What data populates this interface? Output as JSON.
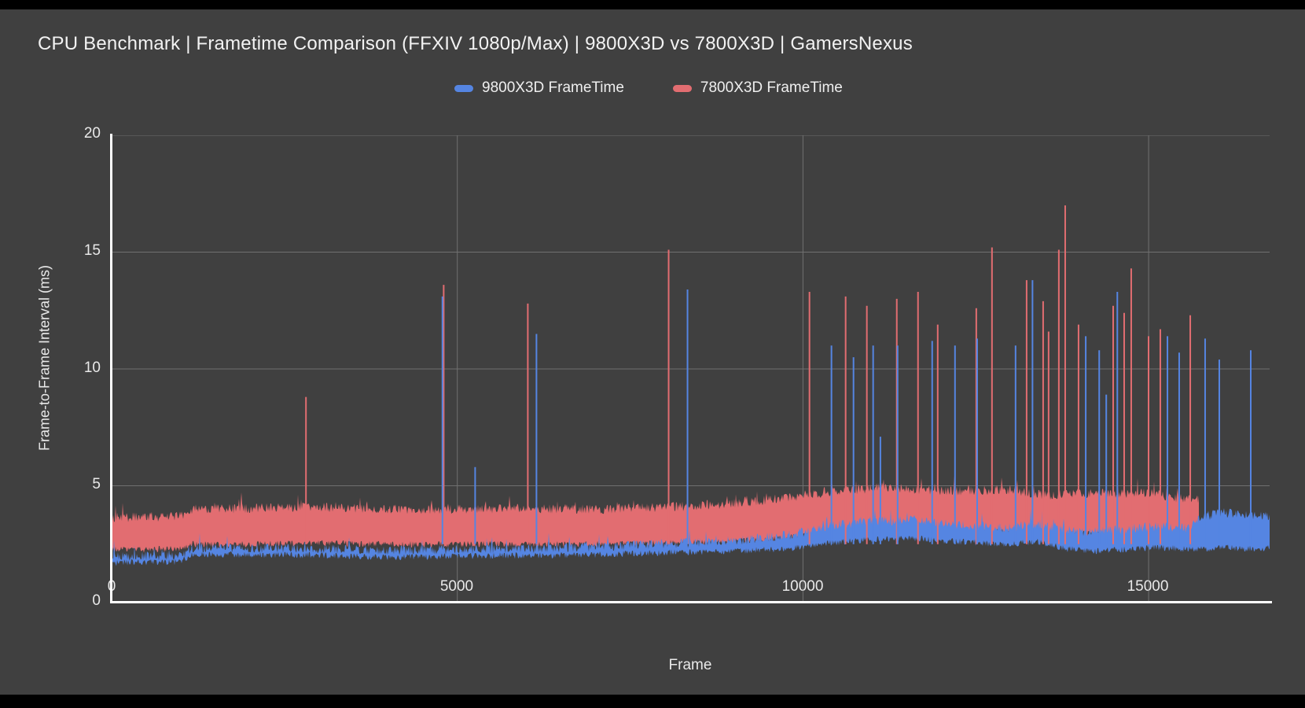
{
  "title": "CPU Benchmark | Frametime Comparison (FFXIV 1080p/Max) | 9800X3D vs 7800X3D | GamersNexus",
  "legend": {
    "items": [
      {
        "label": "9800X3D FrameTime",
        "color": "#5585e2"
      },
      {
        "label": "7800X3D FrameTime",
        "color": "#e26d71"
      }
    ]
  },
  "chart_data": {
    "type": "line",
    "title": "CPU Benchmark | Frametime Comparison (FFXIV 1080p/Max) | 9800X3D vs 7800X3D | GamersNexus",
    "xlabel": "Frame",
    "ylabel": "Frame-to-Frame Interval (ms)",
    "xlim": [
      0,
      16750
    ],
    "ylim": [
      0,
      20
    ],
    "x_ticks": [
      0,
      5000,
      10000,
      15000
    ],
    "y_ticks": [
      0,
      5,
      10,
      15,
      20
    ],
    "grid": true,
    "legend_position": "top-center",
    "background_color": "#404040",
    "grid_color": "#8a8a8a",
    "axis_color": "#ffffff",
    "series": [
      {
        "name": "9800X3D FrameTime",
        "color": "#5585e2",
        "render": "noisy-band",
        "x_start": 0,
        "x_end": 16750,
        "band_envelope": [
          [
            0,
            1.7,
            2.1
          ],
          [
            1000,
            1.75,
            2.1
          ],
          [
            1150,
            2.05,
            2.45
          ],
          [
            2500,
            2.05,
            2.45
          ],
          [
            4000,
            1.95,
            2.35
          ],
          [
            5500,
            2.0,
            2.4
          ],
          [
            7000,
            2.05,
            2.5
          ],
          [
            8200,
            2.15,
            2.65
          ],
          [
            9000,
            2.2,
            2.75
          ],
          [
            9800,
            2.3,
            3.0
          ],
          [
            10400,
            2.55,
            3.4
          ],
          [
            11000,
            2.7,
            3.6
          ],
          [
            11600,
            2.75,
            3.65
          ],
          [
            12300,
            2.6,
            3.45
          ],
          [
            12900,
            2.5,
            3.3
          ],
          [
            13400,
            2.6,
            3.5
          ],
          [
            13800,
            2.3,
            3.2
          ],
          [
            14300,
            2.2,
            3.15
          ],
          [
            15000,
            2.35,
            3.35
          ],
          [
            15600,
            2.3,
            3.3
          ],
          [
            15750,
            2.3,
            3.8
          ],
          [
            16100,
            2.35,
            3.95
          ],
          [
            16500,
            2.3,
            3.85
          ],
          [
            16750,
            2.35,
            3.8
          ]
        ],
        "spikes": [
          [
            4785,
            13.1
          ],
          [
            5258,
            5.8
          ],
          [
            6145,
            11.5
          ],
          [
            8330,
            13.4
          ],
          [
            10412,
            11.0
          ],
          [
            10731,
            10.5
          ],
          [
            11015,
            11.0
          ],
          [
            11120,
            7.1
          ],
          [
            11369,
            11.0
          ],
          [
            11869,
            11.2
          ],
          [
            12199,
            11.0
          ],
          [
            12520,
            11.3
          ],
          [
            13075,
            11.0
          ],
          [
            13320,
            13.8
          ],
          [
            14090,
            11.4
          ],
          [
            14285,
            10.8
          ],
          [
            14387,
            8.9
          ],
          [
            14547,
            13.3
          ],
          [
            15272,
            11.4
          ],
          [
            15442,
            10.7
          ],
          [
            15817,
            11.3
          ],
          [
            16022,
            10.4
          ],
          [
            16477,
            10.8
          ]
        ]
      },
      {
        "name": "7800X3D FrameTime",
        "color": "#e26d71",
        "render": "noisy-band",
        "x_start": 0,
        "x_end": 15730,
        "band_envelope": [
          [
            0,
            2.25,
            3.75
          ],
          [
            1000,
            2.3,
            3.8
          ],
          [
            1150,
            2.5,
            4.1
          ],
          [
            2000,
            2.5,
            4.15
          ],
          [
            3000,
            2.55,
            4.2
          ],
          [
            4200,
            2.5,
            4.1
          ],
          [
            5000,
            2.5,
            4.1
          ],
          [
            6000,
            2.5,
            4.15
          ],
          [
            7000,
            2.5,
            4.1
          ],
          [
            8000,
            2.55,
            4.2
          ],
          [
            8800,
            2.6,
            4.3
          ],
          [
            9500,
            2.7,
            4.5
          ],
          [
            10000,
            2.85,
            4.7
          ],
          [
            10600,
            3.0,
            4.9
          ],
          [
            11200,
            3.05,
            5.05
          ],
          [
            11800,
            3.0,
            4.9
          ],
          [
            12400,
            3.0,
            4.9
          ],
          [
            13000,
            3.05,
            4.95
          ],
          [
            13500,
            2.9,
            4.7
          ],
          [
            14000,
            2.95,
            4.8
          ],
          [
            14500,
            2.9,
            4.75
          ],
          [
            15000,
            2.9,
            4.8
          ],
          [
            15400,
            2.8,
            4.6
          ],
          [
            15730,
            2.8,
            4.5
          ]
        ],
        "spikes": [
          [
            2811,
            8.8
          ],
          [
            4803,
            13.6
          ],
          [
            6020,
            12.8
          ],
          [
            8057,
            15.1
          ],
          [
            10094,
            13.3
          ],
          [
            10617,
            13.1
          ],
          [
            10924,
            12.7
          ],
          [
            11357,
            13.0
          ],
          [
            11664,
            13.3
          ],
          [
            11949,
            11.9
          ],
          [
            12507,
            12.6
          ],
          [
            12734,
            15.2
          ],
          [
            13235,
            13.8
          ],
          [
            13474,
            12.9
          ],
          [
            13553,
            11.6
          ],
          [
            13701,
            15.1
          ],
          [
            13793,
            17.0
          ],
          [
            13986,
            11.9
          ],
          [
            14487,
            12.7
          ],
          [
            14646,
            12.4
          ],
          [
            14748,
            14.3
          ],
          [
            14999,
            11.4
          ],
          [
            15169,
            11.7
          ],
          [
            15602,
            12.3
          ]
        ]
      }
    ]
  }
}
